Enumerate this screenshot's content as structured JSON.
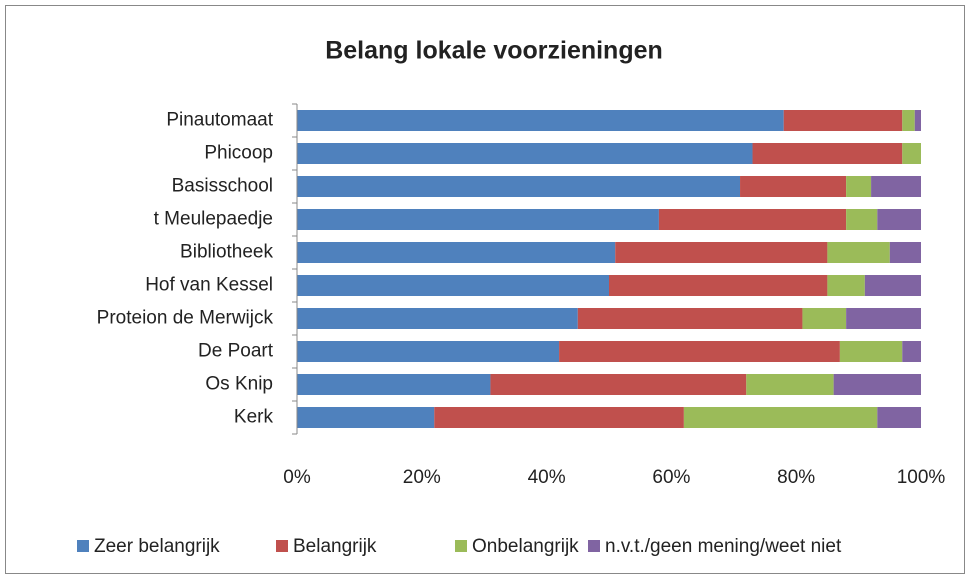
{
  "chart_data": {
    "type": "stacked_barh",
    "title": "Belang  lokale voorzieningen",
    "categories": [
      "Pinautomaat",
      "Phicoop",
      "Basisschool",
      "t Meulepaedje",
      "Bibliotheek",
      "Hof van Kessel",
      "Proteion de Merwijck",
      "De Poart",
      "Os Knip",
      "Kerk"
    ],
    "series": [
      {
        "name": "Zeer belangrijk",
        "color": "#4f81bd",
        "values": [
          78,
          73,
          71,
          58,
          51,
          50,
          45,
          42,
          31,
          22
        ]
      },
      {
        "name": "Belangrijk",
        "color": "#c0504d",
        "values": [
          19,
          24,
          17,
          30,
          34,
          35,
          36,
          45,
          41,
          40
        ]
      },
      {
        "name": "Onbelangrijk",
        "color": "#9bbb59",
        "values": [
          2,
          3,
          4,
          5,
          10,
          6,
          7,
          10,
          14,
          31
        ]
      },
      {
        "name": "n.v.t./geen mening/weet niet",
        "color": "#8064a2",
        "values": [
          1,
          0,
          8,
          7,
          5,
          9,
          12,
          3,
          14,
          7
        ]
      }
    ],
    "xlim": [
      0,
      100
    ],
    "xticks": [
      {
        "value": 0,
        "label": "0%"
      },
      {
        "value": 20,
        "label": "20%"
      },
      {
        "value": 40,
        "label": "40%"
      },
      {
        "value": 60,
        "label": "60%"
      },
      {
        "value": 80,
        "label": "80%"
      },
      {
        "value": 100,
        "label": "100%"
      }
    ],
    "grid": false,
    "legend": "bottom"
  }
}
